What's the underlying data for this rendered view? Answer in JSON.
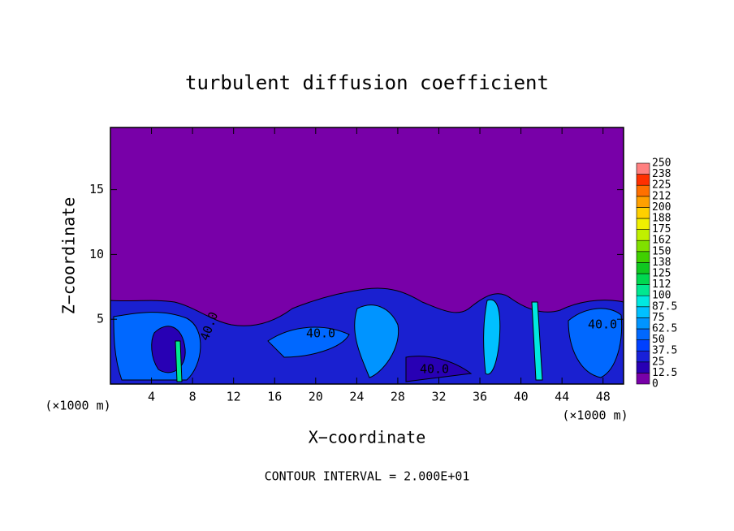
{
  "chart_data": {
    "type": "contour",
    "title": "turbulent diffusion coefficient",
    "x_label": "X−coordinate",
    "y_label": "Z−coordinate",
    "x_unit_left": "(×1000 m)",
    "x_unit_right": "(×1000 m)",
    "footer": "CONTOUR INTERVAL = 2.000E+01",
    "xlim": [
      0,
      50
    ],
    "xticks": [
      4,
      8,
      12,
      16,
      20,
      24,
      28,
      32,
      36,
      40,
      44,
      48
    ],
    "ylim": [
      0,
      19.8
    ],
    "yticks": [
      5,
      10,
      15
    ],
    "contour_labels": [
      "40.0",
      "40.0",
      "40.0",
      "40.0"
    ],
    "colorbar": {
      "levels": [
        0,
        12.5,
        25,
        37.5,
        50,
        62.5,
        75,
        87.5,
        100,
        112,
        125,
        138,
        150,
        162,
        175,
        188,
        200,
        212,
        225,
        238,
        250
      ],
      "colors": [
        "#7800a8",
        "#2800b4",
        "#1820d8",
        "#0040ff",
        "#0068ff",
        "#0094ff",
        "#00c0ff",
        "#00e8e0",
        "#00e890",
        "#00d850",
        "#10c820",
        "#40d000",
        "#80e000",
        "#c0f000",
        "#f0f000",
        "#ffd000",
        "#ffa000",
        "#ff7000",
        "#ff3000",
        "#ff8080"
      ]
    }
  }
}
